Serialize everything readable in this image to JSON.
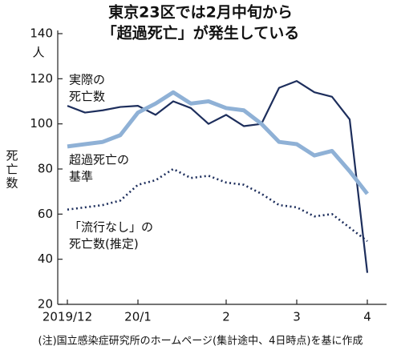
{
  "chart_data": {
    "type": "line",
    "title_lines": [
      "東京23区では2月中旬から",
      "「超過死亡」が発生している"
    ],
    "y_unit": "人",
    "y_label": "死亡数",
    "footnote": "(注)国立感染症研究所のホームページ(集計途中、4日時点)を基に作成",
    "categories": [
      "2019/12",
      null,
      null,
      null,
      "20/1",
      null,
      null,
      null,
      null,
      "2",
      null,
      null,
      null,
      "3",
      null,
      null,
      null,
      "4"
    ],
    "ylim": [
      20,
      140
    ],
    "yticks": [
      20,
      40,
      60,
      80,
      100,
      120,
      140
    ],
    "series": [
      {
        "name_lines": [
          "実際の",
          "死亡数"
        ],
        "color": "#1d2e5c",
        "style": "solid",
        "width": 2.2,
        "values": [
          108,
          105,
          106,
          107.5,
          108,
          104,
          110,
          107,
          100,
          104,
          99,
          100,
          116,
          119,
          114,
          112,
          102,
          34
        ]
      },
      {
        "name_lines": [
          "超過死亡の",
          "基準"
        ],
        "color": "#8fb1d6",
        "style": "solid",
        "width": 5,
        "values": [
          90,
          91,
          92,
          95,
          105,
          109,
          114,
          109,
          110,
          107,
          106,
          100,
          92,
          91,
          86,
          88,
          79,
          69
        ]
      },
      {
        "name_lines": [
          "「流行なし」の",
          "死亡数(推定)"
        ],
        "color": "#1d2e5c",
        "style": "dotted",
        "width": 2.6,
        "values": [
          62,
          63,
          64,
          66,
          73,
          75,
          80,
          76,
          77,
          74,
          73,
          69,
          64,
          63,
          59,
          60,
          54,
          48
        ]
      }
    ]
  }
}
